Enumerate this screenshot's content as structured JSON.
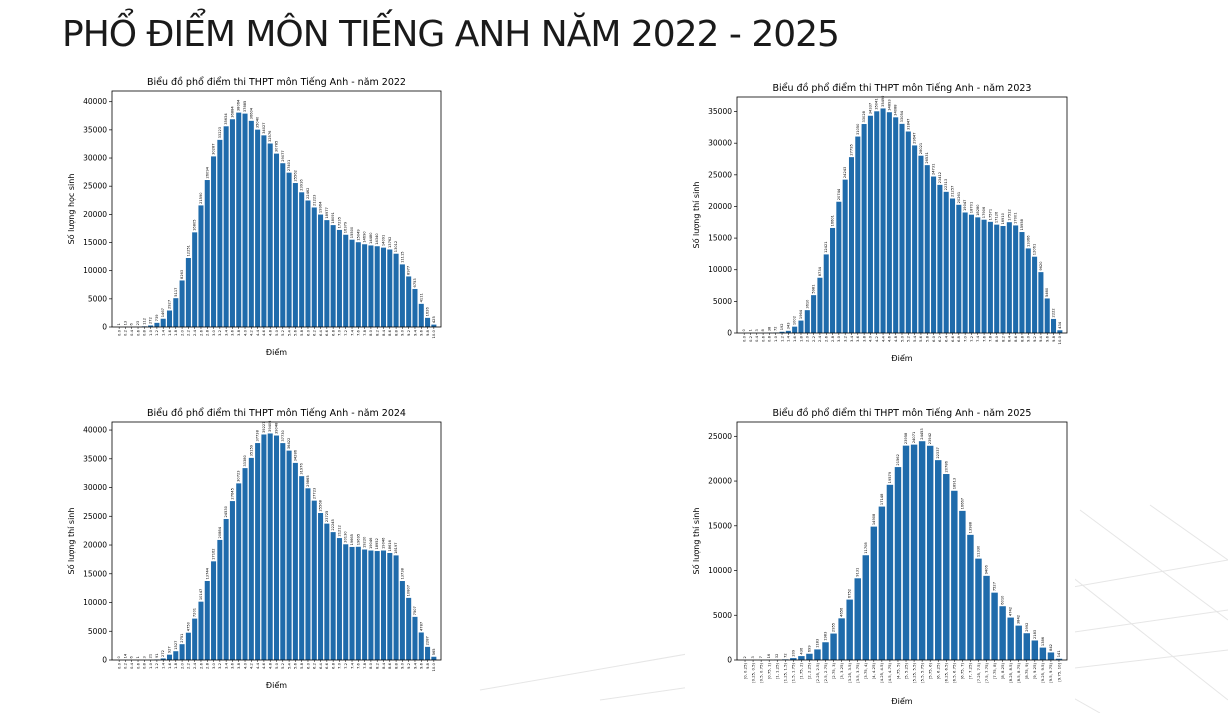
{
  "page_title": "PHỔ ĐIỂM MÔN TIẾNG ANH NĂM 2022 - 2025",
  "chart_data": [
    {
      "type": "bar",
      "title": "Biểu đồ phổ điểm thi THPT môn Tiếng Anh - năm 2022",
      "x_label": "Điểm",
      "y_label": "Số lượng học sinh",
      "color": "#1f6bab",
      "categories": [
        "0.0",
        "0.2",
        "0.4",
        "0.6",
        "0.8",
        "1.0",
        "1.2",
        "1.4",
        "1.6",
        "1.8",
        "2.0",
        "2.2",
        "2.4",
        "2.6",
        "2.8",
        "3.0",
        "3.2",
        "3.4",
        "3.6",
        "3.8",
        "4.0",
        "4.2",
        "4.4",
        "4.6",
        "4.8",
        "5.0",
        "5.2",
        "5.4",
        "5.6",
        "5.8",
        "6.0",
        "6.2",
        "6.4",
        "6.6",
        "6.8",
        "7.0",
        "7.2",
        "7.4",
        "7.6",
        "7.8",
        "8.0",
        "8.2",
        "8.4",
        "8.6",
        "8.8",
        "9.0",
        "9.2",
        "9.4",
        "9.6",
        "9.8",
        "10.0"
      ],
      "values": [
        1,
        13,
        6,
        23,
        112,
        272,
        739,
        1467,
        2927,
        5117,
        8263,
        12251,
        16805,
        21590,
        26094,
        30287,
        33223,
        35634,
        36884,
        38064,
        37885,
        36604,
        35040,
        34027,
        32576,
        30785,
        29077,
        27401,
        25562,
        23916,
        22462,
        21223,
        19964,
        18977,
        18091,
        17235,
        16379,
        15500,
        15049,
        14690,
        14480,
        14340,
        14091,
        13762,
        13012,
        11115,
        8977,
        6753,
        4111,
        1626,
        425
      ],
      "ylim": [
        0,
        41900
      ],
      "yticks": [
        0,
        5000,
        10000,
        15000,
        20000,
        25000,
        30000,
        35000,
        40000
      ]
    },
    {
      "type": "bar",
      "title": "Biểu đồ phổ điểm thi THPT môn Tiếng Anh - năm 2023",
      "x_label": "Điểm",
      "y_label": "Số lượng thí sinh",
      "color": "#1f6bab",
      "categories": [
        "0.0",
        "0.2",
        "0.4",
        "0.6",
        "0.8",
        "1.0",
        "1.2",
        "1.4",
        "1.6",
        "1.8",
        "2.0",
        "2.2",
        "2.4",
        "2.6",
        "2.8",
        "3.0",
        "3.2",
        "3.4",
        "3.6",
        "3.8",
        "4.0",
        "4.2",
        "4.4",
        "4.6",
        "4.8",
        "5.0",
        "5.2",
        "5.4",
        "5.6",
        "5.8",
        "6.0",
        "6.2",
        "6.4",
        "6.6",
        "6.8",
        "7.0",
        "7.2",
        "7.4",
        "7.6",
        "7.8",
        "8.0",
        "8.2",
        "8.4",
        "8.6",
        "8.8",
        "9.0",
        "9.2",
        "9.4",
        "9.6",
        "9.8",
        "10.0"
      ],
      "values": [
        0,
        1,
        3,
        8,
        38,
        72,
        192,
        343,
        1002,
        1964,
        3610,
        5981,
        8734,
        12421,
        16601,
        20744,
        24243,
        27795,
        31050,
        33028,
        34337,
        35041,
        35490,
        34893,
        34088,
        33054,
        31847,
        29647,
        28021,
        26531,
        24731,
        23412,
        22313,
        21257,
        20261,
        19047,
        18701,
        18280,
        17906,
        17571,
        17126,
        16910,
        17512,
        17001,
        15958,
        13366,
        12061,
        9620,
        5460,
        2222,
        434
      ],
      "ylim": [
        0,
        37300
      ],
      "yticks": [
        0,
        5000,
        10000,
        15000,
        20000,
        25000,
        30000,
        35000
      ]
    },
    {
      "type": "bar",
      "title": "Biểu đồ phổ điểm thi THPT môn Tiếng Anh - năm 2024",
      "x_label": "Điểm",
      "y_label": "Số lượng thí sinh",
      "color": "#1f6bab",
      "categories": [
        "0.0",
        "0.2",
        "0.4",
        "0.6",
        "0.8",
        "1.0",
        "1.2",
        "1.4",
        "1.6",
        "1.8",
        "2.0",
        "2.2",
        "2.4",
        "2.6",
        "2.8",
        "3.0",
        "3.2",
        "3.4",
        "3.6",
        "3.8",
        "4.0",
        "4.2",
        "4.4",
        "4.6",
        "4.8",
        "5.0",
        "5.2",
        "5.4",
        "5.6",
        "5.8",
        "6.0",
        "6.2",
        "6.4",
        "6.6",
        "6.8",
        "7.0",
        "7.2",
        "7.4",
        "7.6",
        "7.8",
        "8.0",
        "8.2",
        "8.4",
        "8.6",
        "8.8",
        "9.0",
        "9.2",
        "9.4",
        "9.6",
        "9.8",
        "10.0"
      ],
      "values": [
        0,
        14,
        6,
        1,
        3,
        21,
        91,
        272,
        927,
        1527,
        2751,
        4750,
        7201,
        10147,
        13744,
        17162,
        20884,
        24530,
        27645,
        30723,
        33380,
        35159,
        37738,
        39227,
        39406,
        39048,
        37730,
        36422,
        34286,
        31976,
        29865,
        27723,
        25568,
        23725,
        22245,
        21212,
        20130,
        19665,
        19695,
        19220,
        19046,
        18952,
        19046,
        18616,
        18197,
        13738,
        10807,
        7507,
        4787,
        2287,
        565
      ],
      "ylim": [
        0,
        41400
      ],
      "yticks": [
        0,
        5000,
        10000,
        15000,
        20000,
        25000,
        30000,
        35000,
        40000
      ]
    },
    {
      "type": "bar",
      "title": "Biểu đồ phổ điểm thi THPT môn Tiếng Anh - năm 2025",
      "x_label": "Điểm",
      "y_label": "Số lượng thí sinh",
      "color": "#1f6bab",
      "categories": [
        "[0, 0.25)",
        "[0.25, 0.5)",
        "[0.5, 0.75)",
        "[0.75, 1)",
        "[1, 1.25)",
        "[1.25, 1.5)",
        "[1.5, 1.75)",
        "[1.75, 2)",
        "[2, 2.25)",
        "[2.25, 2.5)",
        "[2.5, 2.75)",
        "[2.75, 3)",
        "[3, 3.25)",
        "[3.25, 3.5)",
        "[3.5, 3.75)",
        "[3.75, 4)",
        "[4, 4.25)",
        "[4.25, 4.5)",
        "[4.5, 4.75)",
        "[4.75, 5)",
        "[5, 5.25)",
        "[5.25, 5.5)",
        "[5.5, 5.75)",
        "[5.75, 6)",
        "[6, 6.25)",
        "[6.25, 6.5)",
        "[6.5, 6.75)",
        "[6.75, 7)",
        "[7, 7.25)",
        "[7.25, 7.5)",
        "[7.5, 7.75)",
        "[7.75, 8)",
        "[8, 8.25)",
        "[8.25, 8.5)",
        "[8.5, 8.75)",
        "[8.75, 9)",
        "[9, 9.25)",
        "[9.25, 9.5)",
        "[9.5, 9.75)",
        "[9.75, 10]"
      ],
      "values": [
        2,
        3,
        7,
        16,
        32,
        72,
        209,
        436,
        699,
        1183,
        1983,
        2955,
        4656,
        6752,
        9131,
        11708,
        14908,
        17148,
        19579,
        21562,
        23958,
        24071,
        24453,
        23942,
        22337,
        20786,
        18913,
        16667,
        13988,
        11330,
        9406,
        7527,
        6010,
        4742,
        3842,
        2992,
        2183,
        1386,
        842,
        141
      ],
      "ylim": [
        0,
        26600
      ],
      "yticks": [
        0,
        5000,
        10000,
        15000,
        20000,
        25000
      ]
    }
  ]
}
